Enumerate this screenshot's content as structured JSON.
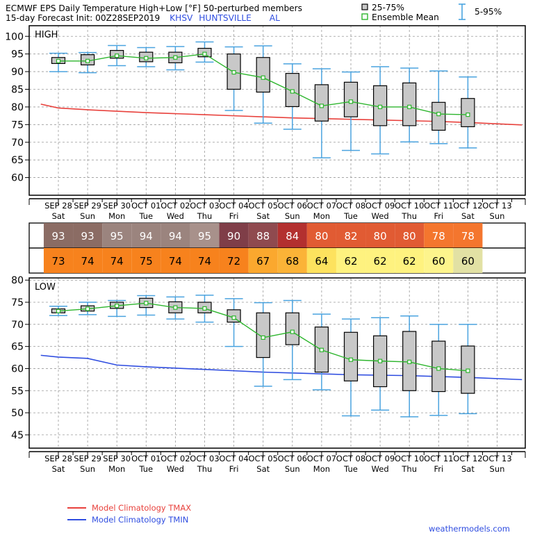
{
  "header": {
    "line1": "ECMWF EPS Daily Temperature High+Low [°F]  50-perturbed members",
    "line2_prefix": "15-day Forecast Init: 00Z28SEP2019",
    "station_id": "KHSV",
    "station_name": "HUNTSVILLE",
    "station_state": "AL"
  },
  "legend": {
    "box_label": "25-75%",
    "mean_label": "Ensemble Mean",
    "whisker_label": "5-95%",
    "climo_tmax_label": "Model Climatology TMAX",
    "climo_tmin_label": "Model Climatology TMIN"
  },
  "credit": "weathermodels.com",
  "colors": {
    "box_fill": "#c8c8c8",
    "whisker": "#4aa3df",
    "mean_line": "#2db52d",
    "climo_tmax": "#e8413c",
    "climo_tmin": "#2f4de0",
    "grid": "#999999"
  },
  "chart_data": [
    {
      "type": "box",
      "panel_label": "HIGH",
      "categories": [
        "SEP 28",
        "SEP 29",
        "SEP 30",
        "OCT 01",
        "OCT 02",
        "OCT 03",
        "OCT 04",
        "OCT 05",
        "OCT 06",
        "OCT 07",
        "OCT 08",
        "OCT 09",
        "OCT 10",
        "OCT 11",
        "OCT 12",
        "OCT 13"
      ],
      "weekdays": [
        "Sat",
        "Sun",
        "Mon",
        "Tue",
        "Wed",
        "Thu",
        "Fri",
        "Sat",
        "Sun",
        "Mon",
        "Tue",
        "Wed",
        "Thu",
        "Fri",
        "Sat",
        "Sun"
      ],
      "ylim": [
        55,
        103
      ],
      "yticks": [
        60,
        65,
        70,
        75,
        80,
        85,
        90,
        95,
        100
      ],
      "grid": true,
      "boxes": [
        {
          "p5": 90,
          "q25": 92.3,
          "mean": 93,
          "q75": 94,
          "p95": 95.2
        },
        {
          "p5": 89.7,
          "q25": 91.9,
          "mean": 93,
          "q75": 94.8,
          "p95": 95.4
        },
        {
          "p5": 91.7,
          "q25": 93.8,
          "mean": 94.5,
          "q75": 96,
          "p95": 97.4
        },
        {
          "p5": 91.4,
          "q25": 92.8,
          "mean": 93.8,
          "q75": 95.5,
          "p95": 96.8
        },
        {
          "p5": 90.5,
          "q25": 92.5,
          "mean": 94,
          "q75": 95.5,
          "p95": 97.1
        },
        {
          "p5": 92.7,
          "q25": 94.2,
          "mean": 95,
          "q75": 96.6,
          "p95": 98.4
        },
        {
          "p5": 79,
          "q25": 85,
          "mean": 89.8,
          "q75": 95,
          "p95": 97
        },
        {
          "p5": 75.4,
          "q25": 84.2,
          "mean": 88.3,
          "q75": 94,
          "p95": 97.3
        },
        {
          "p5": 73.7,
          "q25": 80.1,
          "mean": 84.4,
          "q75": 89.5,
          "p95": 92.2
        },
        {
          "p5": 65.6,
          "q25": 76,
          "mean": 80.3,
          "q75": 86.3,
          "p95": 90.8
        },
        {
          "p5": 67.7,
          "q25": 77.2,
          "mean": 81.5,
          "q75": 87,
          "p95": 89.9
        },
        {
          "p5": 66.7,
          "q25": 74.7,
          "mean": 80,
          "q75": 86,
          "p95": 91.4
        },
        {
          "p5": 70.1,
          "q25": 74.7,
          "mean": 80,
          "q75": 86.8,
          "p95": 91
        },
        {
          "p5": 69.6,
          "q25": 73.4,
          "mean": 78,
          "q75": 81.3,
          "p95": 90.2
        },
        {
          "p5": 68.4,
          "q25": 74.4,
          "mean": 77.8,
          "q75": 82.4,
          "p95": 88.5
        }
      ],
      "climatology_x": [
        -0.6,
        0,
        1,
        2,
        3,
        4,
        5,
        6,
        7,
        8,
        9,
        10,
        11,
        12,
        13,
        14,
        15.85
      ],
      "climatology": [
        80.8,
        79.7,
        79.2,
        78.8,
        78.4,
        78.1,
        77.8,
        77.5,
        77.2,
        76.9,
        76.7,
        76.5,
        76.3,
        76.1,
        75.9,
        75.6,
        74.9
      ]
    },
    {
      "type": "box",
      "panel_label": "LOW",
      "categories": [
        "SEP 28",
        "SEP 29",
        "SEP 30",
        "OCT 01",
        "OCT 02",
        "OCT 03",
        "OCT 04",
        "OCT 05",
        "OCT 06",
        "OCT 07",
        "OCT 08",
        "OCT 09",
        "OCT 10",
        "OCT 11",
        "OCT 12",
        "OCT 13"
      ],
      "weekdays": [
        "Sat",
        "Sun",
        "Mon",
        "Tue",
        "Wed",
        "Thu",
        "Fri",
        "Sat",
        "Sun",
        "Mon",
        "Tue",
        "Wed",
        "Thu",
        "Fri",
        "Sat",
        "Sun"
      ],
      "ylim": [
        42,
        80.5
      ],
      "yticks": [
        45,
        50,
        55,
        60,
        65,
        70,
        75,
        80
      ],
      "grid": true,
      "boxes": [
        {
          "p5": 72,
          "q25": 72.6,
          "mean": 73,
          "q75": 73.5,
          "p95": 74.1
        },
        {
          "p5": 72.2,
          "q25": 73,
          "mean": 73.5,
          "q75": 74.2,
          "p95": 75
        },
        {
          "p5": 71.8,
          "q25": 73.6,
          "mean": 74.2,
          "q75": 75,
          "p95": 75.4
        },
        {
          "p5": 72.1,
          "q25": 73.8,
          "mean": 74.8,
          "q75": 75.9,
          "p95": 76.5
        },
        {
          "p5": 71.2,
          "q25": 72.6,
          "mean": 73.8,
          "q75": 75.1,
          "p95": 76.2
        },
        {
          "p5": 70.5,
          "q25": 72.6,
          "mean": 73.6,
          "q75": 75,
          "p95": 76.6
        },
        {
          "p5": 65,
          "q25": 70.5,
          "mean": 71.5,
          "q75": 73.3,
          "p95": 75.8
        },
        {
          "p5": 56,
          "q25": 62.5,
          "mean": 67,
          "q75": 72.6,
          "p95": 74.9
        },
        {
          "p5": 57.5,
          "q25": 65.4,
          "mean": 68.3,
          "q75": 72.6,
          "p95": 75.4
        },
        {
          "p5": 55.2,
          "q25": 59.2,
          "mean": 64.2,
          "q75": 69.4,
          "p95": 72.3
        },
        {
          "p5": 49.3,
          "q25": 57.2,
          "mean": 62,
          "q75": 68.2,
          "p95": 71.2
        },
        {
          "p5": 50.6,
          "q25": 55.9,
          "mean": 61.7,
          "q75": 67.4,
          "p95": 71.5
        },
        {
          "p5": 49.1,
          "q25": 55,
          "mean": 61.5,
          "q75": 68.4,
          "p95": 71.9
        },
        {
          "p5": 49.4,
          "q25": 54.8,
          "mean": 60,
          "q75": 66.2,
          "p95": 70
        },
        {
          "p5": 49.8,
          "q25": 54.4,
          "mean": 59.5,
          "q75": 65.1,
          "p95": 70
        }
      ],
      "climatology_x": [
        -0.6,
        0,
        1,
        2,
        3,
        4,
        5,
        6,
        7,
        8,
        9,
        10,
        11,
        12,
        13,
        14,
        15.85
      ],
      "climatology": [
        63,
        62.6,
        62.3,
        60.8,
        60.4,
        60.1,
        59.8,
        59.5,
        59.2,
        59,
        58.8,
        58.6,
        58.5,
        58.4,
        58.2,
        58,
        57.5
      ]
    }
  ],
  "tables": {
    "high_values": [
      "93",
      "93",
      "95",
      "94",
      "94",
      "95",
      "90",
      "88",
      "84",
      "80",
      "82",
      "80",
      "80",
      "78",
      "78"
    ],
    "high_colors": [
      "#8b6c64",
      "#8b6c64",
      "#9b847e",
      "#9b847e",
      "#9b847e",
      "#a8918b",
      "#7f3e48",
      "#8f4a4f",
      "#b3302f",
      "#e15b33",
      "#e15b33",
      "#e15b33",
      "#e15b33",
      "#f4762e",
      "#f4762e"
    ],
    "low_values": [
      "73",
      "74",
      "74",
      "75",
      "74",
      "74",
      "72",
      "67",
      "68",
      "64",
      "62",
      "62",
      "62",
      "60",
      "60"
    ],
    "low_colors": [
      "#f7821d",
      "#f7821d",
      "#f7821d",
      "#f7821d",
      "#f7821d",
      "#f7821d",
      "#f7821d",
      "#fba82e",
      "#fbb337",
      "#fde25e",
      "#fef27f",
      "#fef27f",
      "#fef27f",
      "#fdf48c",
      "#e2e1a4"
    ]
  }
}
